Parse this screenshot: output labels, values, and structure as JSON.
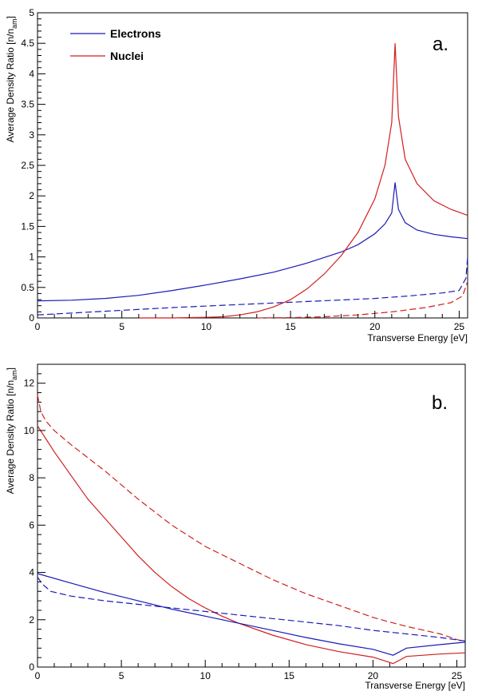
{
  "chart_data": [
    {
      "type": "line",
      "panel_label": "a.",
      "xlabel": "Transverse Energy [eV]",
      "ylabel_main": "Average Density Ratio [n/n",
      "ylabel_sub": "am",
      "ylabel_close": "]",
      "xlim": [
        0,
        25.5
      ],
      "ylim": [
        0,
        5
      ],
      "x_ticks": [
        0,
        5,
        10,
        15,
        20,
        25
      ],
      "y_ticks": [
        0,
        0.5,
        1,
        1.5,
        2,
        2.5,
        3,
        3.5,
        4,
        4.5,
        5
      ],
      "legend_position": "top-left",
      "legend": [
        {
          "name": "Electrons",
          "color": "#1a1ab8"
        },
        {
          "name": "Nuclei",
          "color": "#d21f1f"
        }
      ],
      "series": [
        {
          "name": "Electrons",
          "color": "#1a1ab8",
          "style": "solid",
          "x": [
            0,
            2,
            4,
            6,
            8,
            10,
            12,
            14,
            16,
            18,
            19,
            20,
            20.6,
            21,
            21.2,
            21.4,
            21.8,
            22.5,
            23.5,
            24.5,
            25.5
          ],
          "y": [
            0.28,
            0.29,
            0.32,
            0.37,
            0.45,
            0.54,
            0.64,
            0.75,
            0.9,
            1.08,
            1.2,
            1.38,
            1.54,
            1.72,
            2.22,
            1.78,
            1.56,
            1.44,
            1.37,
            1.33,
            1.3
          ]
        },
        {
          "name": "Electrons",
          "color": "#1a1ab8",
          "style": "dashed",
          "x": [
            0,
            4,
            8,
            12,
            16,
            20,
            22,
            24,
            25,
            25.4,
            25.5
          ],
          "y": [
            0.05,
            0.11,
            0.17,
            0.22,
            0.27,
            0.32,
            0.36,
            0.41,
            0.45,
            0.65,
            1.0
          ]
        },
        {
          "name": "Nuclei",
          "color": "#d21f1f",
          "style": "solid",
          "x": [
            6,
            8,
            10,
            11,
            12,
            13,
            14,
            15,
            16,
            17,
            18,
            19,
            20,
            20.6,
            21,
            21.2,
            21.4,
            21.8,
            22.5,
            23.5,
            24.5,
            25.5
          ],
          "y": [
            0,
            0,
            0.01,
            0.02,
            0.05,
            0.1,
            0.18,
            0.3,
            0.48,
            0.72,
            1.02,
            1.4,
            1.95,
            2.5,
            3.2,
            4.5,
            3.3,
            2.6,
            2.2,
            1.92,
            1.78,
            1.68
          ]
        },
        {
          "name": "Nuclei",
          "color": "#d21f1f",
          "style": "dashed",
          "x": [
            13,
            15,
            17,
            19,
            21,
            23,
            24.5,
            25.2,
            25.5
          ],
          "y": [
            0,
            0.005,
            0.02,
            0.05,
            0.1,
            0.17,
            0.25,
            0.36,
            0.6
          ]
        }
      ]
    },
    {
      "type": "line",
      "panel_label": "b.",
      "xlabel": "Transverse Energy [eV]",
      "ylabel_main": "Average Density Ratio [n/n",
      "ylabel_sub": "am",
      "ylabel_close": "]",
      "xlim": [
        0,
        25.5
      ],
      "ylim": [
        0,
        12.8
      ],
      "x_ticks": [
        0,
        5,
        10,
        15,
        20,
        25
      ],
      "y_ticks": [
        0,
        2,
        4,
        6,
        8,
        10,
        12
      ],
      "series": [
        {
          "name": "Nuclei",
          "color": "#d21f1f",
          "style": "dashed",
          "x": [
            0,
            0.2,
            0.5,
            1,
            2,
            4,
            6,
            8,
            10,
            12,
            14,
            16,
            18,
            20,
            21,
            22,
            24,
            25.5
          ],
          "y": [
            11.5,
            10.8,
            10.4,
            10.0,
            9.4,
            8.3,
            7.1,
            6.0,
            5.1,
            4.4,
            3.7,
            3.1,
            2.6,
            2.1,
            1.9,
            1.72,
            1.4,
            1.05
          ]
        },
        {
          "name": "Nuclei",
          "color": "#d21f1f",
          "style": "solid",
          "x": [
            0,
            1,
            2,
            3,
            4,
            5,
            6,
            7,
            8,
            9,
            10,
            11,
            12,
            14,
            16,
            18,
            20,
            21.2,
            22,
            24,
            25.5
          ],
          "y": [
            10.2,
            9.1,
            8.1,
            7.1,
            6.3,
            5.5,
            4.7,
            4.0,
            3.4,
            2.9,
            2.5,
            2.15,
            1.85,
            1.35,
            0.95,
            0.65,
            0.42,
            0.15,
            0.45,
            0.55,
            0.6
          ]
        },
        {
          "name": "Electrons",
          "color": "#1a1ab8",
          "style": "solid",
          "x": [
            0,
            2,
            4,
            6,
            8,
            10,
            12,
            14,
            16,
            18,
            20,
            21.2,
            22,
            24,
            25.5
          ],
          "y": [
            3.95,
            3.55,
            3.15,
            2.8,
            2.45,
            2.15,
            1.85,
            1.55,
            1.25,
            0.98,
            0.75,
            0.5,
            0.8,
            0.95,
            1.05
          ]
        },
        {
          "name": "Electrons",
          "color": "#1a1ab8",
          "style": "dashed",
          "x": [
            0,
            0.3,
            0.8,
            2,
            4,
            6,
            8,
            10,
            12,
            14,
            16,
            18,
            20,
            22,
            24,
            25.5
          ],
          "y": [
            3.8,
            3.5,
            3.2,
            3.0,
            2.8,
            2.65,
            2.5,
            2.35,
            2.2,
            2.05,
            1.9,
            1.75,
            1.55,
            1.4,
            1.25,
            1.1
          ]
        }
      ]
    }
  ]
}
